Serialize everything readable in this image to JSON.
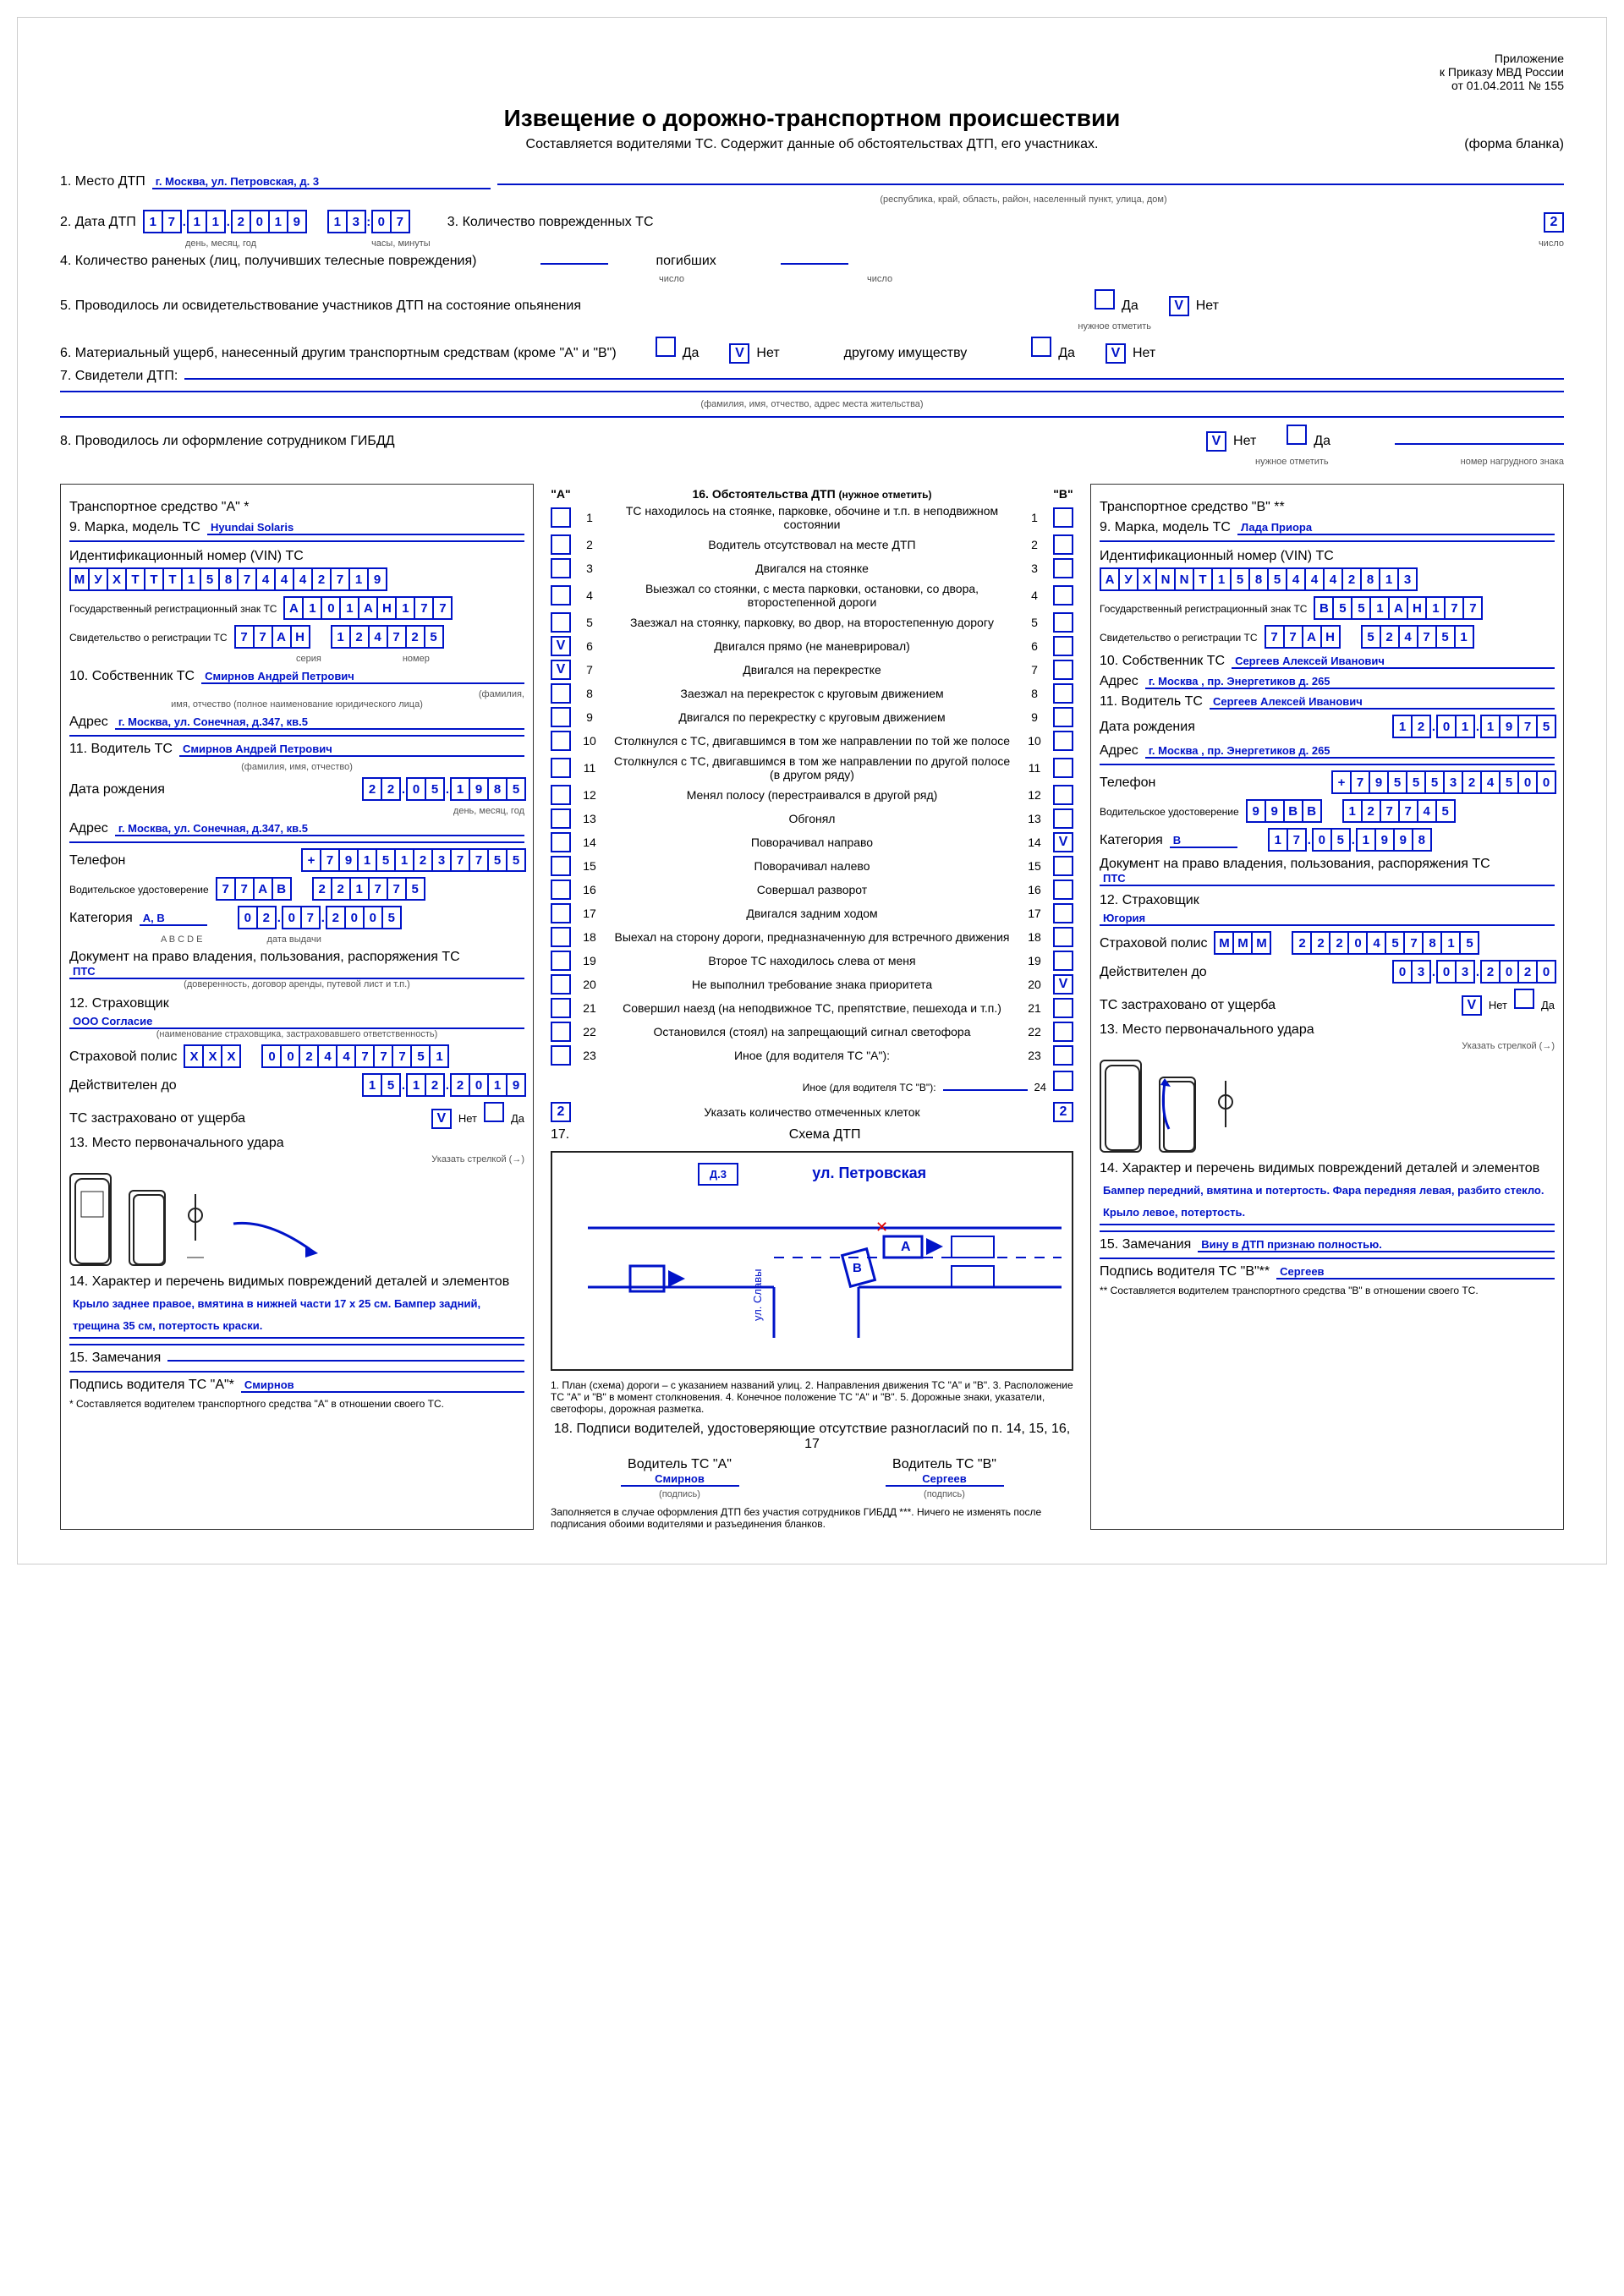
{
  "header": {
    "attachment": "Приложение",
    "order": "к Приказу МВД России",
    "date": "от 01.04.2011 № 155",
    "title": "Извещение о дорожно-транспортном происшествии",
    "subtitle": "Составляется водителями ТС. Содержит данные об обстоятельствах ДТП, его участниках.",
    "form": "(форма бланка)"
  },
  "s1": {
    "label": "1. Место ДТП",
    "value": "г. Москва, ул. Петровская, д. 3",
    "hint": "(республика, край, область, район, населенный пункт, улица, дом)"
  },
  "s2": {
    "label": "2. Дата ДТП",
    "date_chars": [
      "1",
      "7",
      ".",
      "1",
      "1",
      ".",
      "2",
      "0",
      "1",
      "9"
    ],
    "time_chars": [
      "1",
      "3",
      ":",
      "0",
      "7"
    ],
    "date_hint": "день, месяц, год",
    "time_hint": "часы, минуты"
  },
  "s3": {
    "label": "3. Количество поврежденных ТС",
    "value": "2",
    "hint": "число"
  },
  "s4": {
    "label": "4. Количество раненых (лиц, получивших телесные повреждения)",
    "dead_label": "погибших",
    "hint": "число"
  },
  "s5": {
    "label": "5. Проводилось ли освидетельствование участников ДТП на состояние опьянения",
    "da": "Да",
    "net": "Нет",
    "net_v": "V",
    "hint": "нужное отметить"
  },
  "s6": {
    "label": "6. Материальный ущерб, нанесенный другим транспортным средствам (кроме \"А\" и \"В\")",
    "da": "Да",
    "net": "Нет",
    "net_v": "V",
    "other": "другому имуществу",
    "da2": "Да",
    "net2": "Нет",
    "net2_v": "V",
    "hint": "нужное отметить"
  },
  "s7": {
    "label": "7. Свидетели ДТП:",
    "hint": "(фамилия, имя, отчество, адрес места жительства)"
  },
  "s8": {
    "label": "8. Проводилось ли оформление сотрудником ГИБДД",
    "net": "Нет",
    "net_v": "V",
    "da": "Да",
    "hint": "нужное отметить",
    "badge": "номер нагрудного знака"
  },
  "vehA": {
    "title": "Транспортное средство \"А\" *",
    "s9": "9. Марка, модель ТС",
    "s9_val": "Hyundai Solaris",
    "vin_label": "Идентификационный номер (VIN) ТС",
    "vin": [
      "M",
      "У",
      "X",
      "T",
      "T",
      "T",
      "1",
      "5",
      "8",
      "7",
      "4",
      "4",
      "4",
      "2",
      "7",
      "1",
      "9"
    ],
    "reg_label": "Государственный регистрационный знак ТС",
    "reg": [
      "А",
      "1",
      "0",
      "1",
      "А",
      "Н",
      "1",
      "7",
      "7"
    ],
    "cert_label": "Свидетельство о регистрации ТС",
    "cert_s": [
      "7",
      "7",
      "А",
      "Н"
    ],
    "cert_n": [
      "1",
      "2",
      "4",
      "7",
      "2",
      "5"
    ],
    "cert_s_hint": "серия",
    "cert_n_hint": "номер",
    "s10": "10. Собственник ТС",
    "s10_val": "Смирнов Андрей Петрович",
    "s10_hint": "(фамилия,",
    "s10_hint2": "имя, отчество (полное наименование юридического лица)",
    "addr": "Адрес",
    "addr_val": "г. Москва, ул. Сонечная, д.347, кв.5",
    "s11": "11. Водитель ТС",
    "s11_val": "Смирнов Андрей Петрович",
    "s11_hint": "(фамилия, имя, отчество)",
    "dob": "Дата рождения",
    "dob_chars": [
      "2",
      "2",
      ".",
      "0",
      "5",
      ".",
      "1",
      "9",
      "8",
      "5"
    ],
    "dob_hint": "день, месяц, год",
    "addr2_val": "г. Москва, ул. Сонечная, д.347, кв.5",
    "tel": "Телефон",
    "tel_chars": [
      "+",
      "7",
      "9",
      "1",
      "5",
      "1",
      "2",
      "3",
      "7",
      "7",
      "5",
      "5"
    ],
    "lic": "Водительское удостоверение",
    "lic_s": [
      "7",
      "7",
      "А",
      "В"
    ],
    "lic_n": [
      "2",
      "2",
      "1",
      "7",
      "7",
      "5"
    ],
    "cat": "Категория",
    "cat_val": "А, В",
    "cat_hint": "A B C D E",
    "cat_date": [
      "0",
      "2",
      ".",
      "0",
      "7",
      ".",
      "2",
      "0",
      "0",
      "5"
    ],
    "cat_date_hint": "дата выдачи",
    "doc": "Документ на право владения, пользования, распоряжения ТС",
    "doc_val": "ПТС",
    "doc_hint": "(доверенность, договор аренды, путевой лист и т.п.)",
    "s12": "12. Страховщик",
    "s12_val": "ООО Согласие",
    "s12_hint": "(наименование страховщика, застраховавшего ответственность)",
    "policy": "Страховой полис",
    "policy_s": [
      "Х",
      "Х",
      "Х"
    ],
    "policy_n": [
      "0",
      "0",
      "2",
      "4",
      "4",
      "7",
      "7",
      "7",
      "5",
      "1"
    ],
    "valid": "Действителен до",
    "valid_chars": [
      "1",
      "5",
      ".",
      "1",
      "2",
      ".",
      "2",
      "0",
      "1",
      "9"
    ],
    "insured": "ТС застраховано от ущерба",
    "ins_net": "Нет",
    "ins_net_v": "V",
    "ins_da": "Да",
    "s13": "13. Место первоначального удара",
    "s13_hint": "Указать стрелкой (→)",
    "s14": "14. Характер и перечень видимых повреждений деталей и элементов",
    "s14_val": "Крыло заднее правое, вмятина в нижней части 17 х 25 см. Бампер задний, трещина 35 см, потертость краски.",
    "s15": "15. Замечания",
    "sign": "Подпись водителя ТС \"А\"*",
    "sign_val": "Смирнов",
    "footnote": "* Составляется водителем транспортного средства \"А\" в отношении своего ТС."
  },
  "vehB": {
    "title": "Транспортное средство \"В\" **",
    "s9": "9. Марка, модель ТС",
    "s9_val": "Лада Приора",
    "vin_label": "Идентификационный номер (VIN) ТС",
    "vin": [
      "А",
      "У",
      "X",
      "N",
      "N",
      "T",
      "1",
      "5",
      "8",
      "5",
      "4",
      "4",
      "4",
      "2",
      "8",
      "1",
      "3"
    ],
    "reg_label": "Государственный регистрационный знак ТС",
    "reg": [
      "В",
      "5",
      "5",
      "1",
      "А",
      "Н",
      "1",
      "7",
      "7"
    ],
    "cert_label": "Свидетельство о регистрации ТС",
    "cert_s": [
      "7",
      "7",
      "А",
      "Н"
    ],
    "cert_n": [
      "5",
      "2",
      "4",
      "7",
      "5",
      "1"
    ],
    "s10": "10. Собственник ТС",
    "s10_val": "Сергеев Алексей Иванович",
    "addr": "Адрес",
    "addr_val": "г. Москва , пр. Энергетиков д. 265",
    "s11": "11. Водитель ТС",
    "s11_val": "Сергеев Алексей Иванович",
    "dob": "Дата рождения",
    "dob_chars": [
      "1",
      "2",
      ".",
      "0",
      "1",
      ".",
      "1",
      "9",
      "7",
      "5"
    ],
    "addr2_val": "г. Москва , пр. Энергетиков д. 265",
    "tel": "Телефон",
    "tel_chars": [
      "+",
      "7",
      "9",
      "5",
      "5",
      "5",
      "3",
      "2",
      "4",
      "5",
      "0",
      "0"
    ],
    "lic": "Водительское удостоверение",
    "lic_s": [
      "9",
      "9",
      "В",
      "В"
    ],
    "lic_n": [
      "1",
      "2",
      "7",
      "7",
      "4",
      "5"
    ],
    "cat": "Категория",
    "cat_val": "В",
    "cat_date": [
      "1",
      "7",
      ".",
      "0",
      "5",
      ".",
      "1",
      "9",
      "9",
      "8"
    ],
    "doc": "Документ на право владения, пользования, распоряжения ТС",
    "doc_val": "ПТС",
    "s12": "12. Страховщик",
    "s12_val": "Югория",
    "policy": "Страховой полис",
    "policy_s": [
      "М",
      "М",
      "М"
    ],
    "policy_n": [
      "2",
      "2",
      "2",
      "0",
      "4",
      "5",
      "7",
      "8",
      "1",
      "5"
    ],
    "valid": "Действителен до",
    "valid_chars": [
      "0",
      "3",
      ".",
      "0",
      "3",
      ".",
      "2",
      "0",
      "2",
      "0"
    ],
    "insured": "ТС застраховано от ущерба",
    "ins_net": "Нет",
    "ins_net_v": "V",
    "ins_da": "Да",
    "s13": "13. Место первоначального удара",
    "s14": "14. Характер и перечень видимых повреждений деталей и элементов",
    "s14_val": "Бампер передний, вмятина и потертость. Фара передняя левая, разбито стекло. Крыло левое, потертость.",
    "s15": "15. Замечания",
    "s15_val": "Вину в ДТП признаю полностью.",
    "sign": "Подпись водителя ТС \"В\"**",
    "sign_val": "Сергеев",
    "footnote": "** Составляется водителем транспортного средства \"В\" в отношении своего ТС."
  },
  "circ": {
    "header_a": "\"А\"",
    "header_b": "\"В\"",
    "title": "16. Обстоятельства ДТП",
    "title_hint": "(нужное отметить)",
    "items": [
      {
        "n": "1",
        "txt": "ТС находилось на стоянке, парковке, обочине и т.п. в неподвижном состоянии",
        "a": "",
        "b": ""
      },
      {
        "n": "2",
        "txt": "Водитель отсутствовал на месте ДТП",
        "a": "",
        "b": ""
      },
      {
        "n": "3",
        "txt": "Двигался на стоянке",
        "a": "",
        "b": ""
      },
      {
        "n": "4",
        "txt": "Выезжал со стоянки, с места парковки, остановки, со двора, второстепенной дороги",
        "a": "",
        "b": ""
      },
      {
        "n": "5",
        "txt": "Заезжал на стоянку, парковку, во двор, на второстепенную дорогу",
        "a": "",
        "b": ""
      },
      {
        "n": "6",
        "txt": "Двигался прямо (не маневрировал)",
        "a": "V",
        "b": ""
      },
      {
        "n": "7",
        "txt": "Двигался на перекрестке",
        "a": "V",
        "b": ""
      },
      {
        "n": "8",
        "txt": "Заезжал на перекресток с круговым движением",
        "a": "",
        "b": ""
      },
      {
        "n": "9",
        "txt": "Двигался по перекрестку с круговым движением",
        "a": "",
        "b": ""
      },
      {
        "n": "10",
        "txt": "Столкнулся с ТС, двигавшимся в том же направлении по той же полосе",
        "a": "",
        "b": ""
      },
      {
        "n": "11",
        "txt": "Столкнулся с ТС, двигавшимся в том же направлении по другой полосе (в другом ряду)",
        "a": "",
        "b": ""
      },
      {
        "n": "12",
        "txt": "Менял полосу (перестраивался в другой ряд)",
        "a": "",
        "b": ""
      },
      {
        "n": "13",
        "txt": "Обгонял",
        "a": "",
        "b": ""
      },
      {
        "n": "14",
        "txt": "Поворачивал направо",
        "a": "",
        "b": "V"
      },
      {
        "n": "15",
        "txt": "Поворачивал налево",
        "a": "",
        "b": ""
      },
      {
        "n": "16",
        "txt": "Совершал разворот",
        "a": "",
        "b": ""
      },
      {
        "n": "17",
        "txt": "Двигался задним ходом",
        "a": "",
        "b": ""
      },
      {
        "n": "18",
        "txt": "Выехал на сторону дороги, предназначенную для встречного движения",
        "a": "",
        "b": ""
      },
      {
        "n": "19",
        "txt": "Второе ТС находилось слева от меня",
        "a": "",
        "b": ""
      },
      {
        "n": "20",
        "txt": "Не выполнил требование знака приоритета",
        "a": "",
        "b": "V"
      },
      {
        "n": "21",
        "txt": "Совершил наезд (на неподвижное ТС, препятствие, пешехода и т.п.)",
        "a": "",
        "b": ""
      },
      {
        "n": "22",
        "txt": "Остановился (стоял) на запрещающий сигнал светофора",
        "a": "",
        "b": ""
      },
      {
        "n": "23",
        "txt": "Иное (для водителя ТС \"А\"):",
        "a": "",
        "b": ""
      }
    ],
    "other_b": "Иное (для водителя ТС \"В\"):",
    "other_b_n": "24",
    "count_a": "2",
    "count_b": "2",
    "count_label": "Указать количество отмеченных клеток",
    "s17": "17.",
    "scheme_label": "Схема ДТП"
  },
  "scheme": {
    "house": "Д.3",
    "street": "ул. Петровская",
    "street2": "ул. Славы",
    "a": "А",
    "b": "В",
    "hint": "1. План (схема) дороги – с указанием названий улиц.    2. Направления движения ТС \"А\" и \"В\".    3. Расположение ТС \"А\" и \"В\" в момент столкновения.    4. Конечное положение ТС \"А\" и \"В\".    5. Дорожные знаки, указатели, светофоры, дорожная разметка."
  },
  "bottom": {
    "s18": "18. Подписи водителей, удостоверяющие отсутствие разногласий по п. 14, 15, 16, 17",
    "driver_a": "Водитель ТС \"А\"",
    "driver_b": "Водитель ТС \"В\"",
    "sign_a": "Смирнов",
    "sign_b": "Сергеев",
    "sign_hint": "(подпись)",
    "note": "Заполняется в случае оформления ДТП без участия сотрудников ГИБДД ***. Ничего не изменять после подписания обоими водителями и разъединения бланков."
  }
}
